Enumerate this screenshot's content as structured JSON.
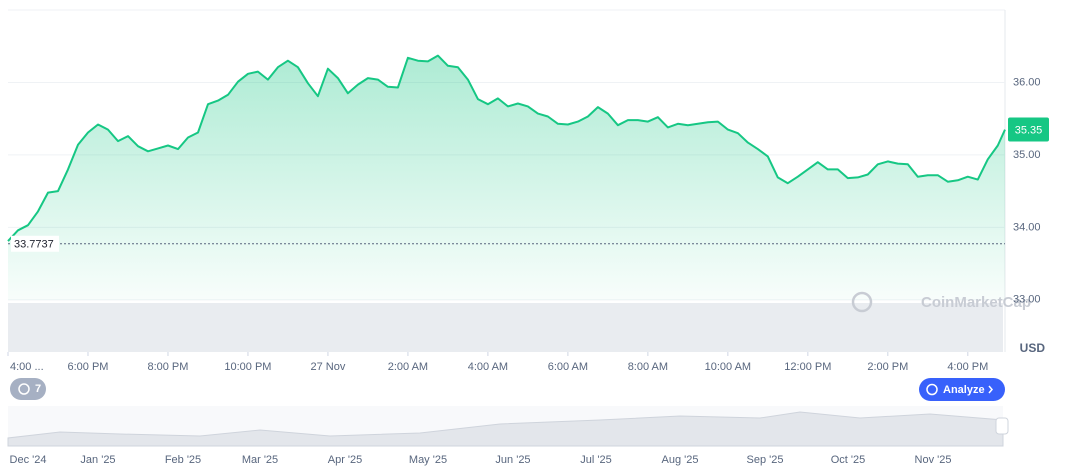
{
  "chart_data": {
    "type": "area",
    "color": "#16c784",
    "currency": "USD",
    "watermark": "CoinMarketCap",
    "reference": 33.7737,
    "current_price": 35.35,
    "grid": true,
    "xlim": [
      0,
      24.93
    ],
    "ylim": [
      32.28,
      37.0
    ],
    "xticks": [
      {
        "value": 0,
        "label": "4:00 ..."
      },
      {
        "value": 2,
        "label": "6:00 PM"
      },
      {
        "value": 4,
        "label": "8:00 PM"
      },
      {
        "value": 6,
        "label": "10:00 PM"
      },
      {
        "value": 8,
        "label": "27 Nov"
      },
      {
        "value": 10,
        "label": "2:00 AM"
      },
      {
        "value": 12,
        "label": "4:00 AM"
      },
      {
        "value": 14,
        "label": "6:00 AM"
      },
      {
        "value": 16,
        "label": "8:00 AM"
      },
      {
        "value": 18,
        "label": "10:00 AM"
      },
      {
        "value": 20,
        "label": "12:00 PM"
      },
      {
        "value": 22,
        "label": "2:00 PM"
      },
      {
        "value": 24,
        "label": "4:00 PM"
      }
    ],
    "yticks": [
      {
        "value": 33,
        "label": "33.00"
      },
      {
        "value": 34,
        "label": "34.00"
      },
      {
        "value": 35,
        "label": "35.00"
      },
      {
        "value": 36,
        "label": "36.00"
      }
    ],
    "x": [
      0,
      0.25,
      0.5,
      0.75,
      1,
      1.25,
      1.5,
      1.75,
      2,
      2.25,
      2.5,
      2.75,
      3,
      3.25,
      3.5,
      3.75,
      4,
      4.25,
      4.5,
      4.75,
      5,
      5.25,
      5.5,
      5.75,
      6,
      6.25,
      6.5,
      6.75,
      7,
      7.25,
      7.5,
      7.75,
      8,
      8.25,
      8.5,
      8.75,
      9,
      9.25,
      9.5,
      9.75,
      10,
      10.25,
      10.5,
      10.75,
      11,
      11.25,
      11.5,
      11.75,
      12,
      12.25,
      12.5,
      12.75,
      13,
      13.25,
      13.5,
      13.75,
      14,
      14.25,
      14.5,
      14.75,
      15,
      15.25,
      15.5,
      15.75,
      16,
      16.25,
      16.5,
      16.75,
      17,
      17.25,
      17.5,
      17.75,
      18,
      18.25,
      18.5,
      18.75,
      19,
      19.25,
      19.5,
      19.75,
      20,
      20.25,
      20.5,
      20.75,
      21,
      21.25,
      21.5,
      21.75,
      22,
      22.25,
      22.5,
      22.75,
      23,
      23.25,
      23.5,
      23.75,
      24,
      24.25,
      24.5,
      24.75,
      24.93
    ],
    "values": [
      33.81,
      33.96,
      34.03,
      34.22,
      34.48,
      34.5,
      34.8,
      35.14,
      35.31,
      35.42,
      35.35,
      35.19,
      35.26,
      35.12,
      35.05,
      35.09,
      35.13,
      35.08,
      35.24,
      35.31,
      35.7,
      35.75,
      35.83,
      36.01,
      36.12,
      36.15,
      36.04,
      36.21,
      36.3,
      36.21,
      35.99,
      35.81,
      36.19,
      36.06,
      35.85,
      35.97,
      36.06,
      36.04,
      35.94,
      35.93,
      36.34,
      36.3,
      36.29,
      36.37,
      36.23,
      36.21,
      36.04,
      35.77,
      35.7,
      35.78,
      35.67,
      35.71,
      35.67,
      35.57,
      35.53,
      35.43,
      35.42,
      35.46,
      35.53,
      35.66,
      35.57,
      35.41,
      35.48,
      35.48,
      35.46,
      35.52,
      35.38,
      35.43,
      35.41,
      35.43,
      35.45,
      35.46,
      35.35,
      35.3,
      35.17,
      35.08,
      34.98,
      34.69,
      34.61,
      34.7,
      34.8,
      34.9,
      34.8,
      34.8,
      34.68,
      34.69,
      34.73,
      34.87,
      34.91,
      34.88,
      34.87,
      34.7,
      34.72,
      34.72,
      34.63,
      34.65,
      34.7,
      34.66,
      34.94,
      35.13,
      35.35
    ],
    "navigator": {
      "labels": [
        "Dec '24",
        "Jan '25",
        "Feb '25",
        "Mar '25",
        "Apr '25",
        "May '25",
        "Jun '25",
        "Jul '25",
        "Aug '25",
        "Sep '25",
        "Oct '25",
        "Nov '25"
      ]
    }
  },
  "ui": {
    "alerts": "7",
    "analyze": "Analyze"
  }
}
